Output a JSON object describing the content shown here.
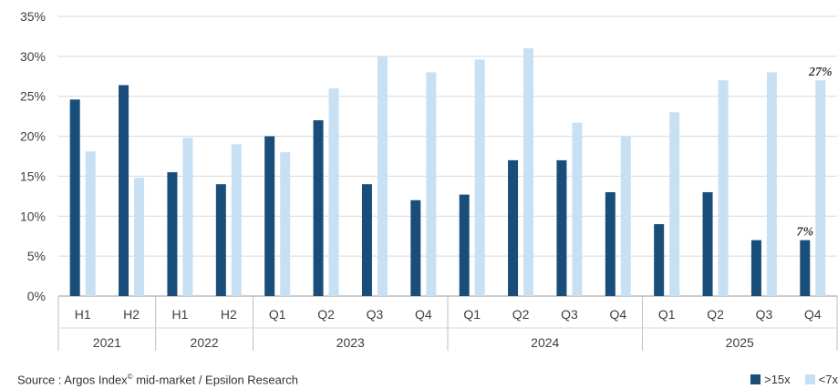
{
  "chart_data": {
    "type": "bar",
    "title": "",
    "xlabel": "",
    "ylabel": "",
    "ylim": [
      0,
      35
    ],
    "yticks": [
      "0%",
      "5%",
      "10%",
      "15%",
      "20%",
      "25%",
      "30%",
      "35%"
    ],
    "grid": true,
    "categories": [
      "H1",
      "H2",
      "H1",
      "H2",
      "Q1",
      "Q2",
      "Q3",
      "Q4",
      "Q1",
      "Q2",
      "Q3",
      "Q4",
      "Q1",
      "Q2",
      "Q3",
      "Q4"
    ],
    "groups": [
      {
        "label": "2021",
        "count": 2
      },
      {
        "label": "2022",
        "count": 2
      },
      {
        "label": "2023",
        "count": 4
      },
      {
        "label": "2024",
        "count": 4
      },
      {
        "label": "2025",
        "count": 4
      }
    ],
    "series": [
      {
        "name": ">15x",
        "color": "#1a4e7a",
        "values": [
          24.6,
          26.4,
          15.5,
          14.0,
          20.0,
          22.0,
          14.0,
          12.0,
          12.7,
          17.0,
          17.0,
          13.0,
          9.0,
          13.0,
          7.0,
          7.0
        ]
      },
      {
        "name": "<7x",
        "color": "#c8e0f4",
        "values": [
          18.1,
          14.8,
          19.8,
          19.0,
          18.0,
          26.0,
          30.0,
          28.0,
          29.6,
          31.0,
          21.7,
          20.0,
          23.0,
          27.0,
          28.0,
          27.0
        ]
      }
    ],
    "annotations": [
      {
        "text": "7%",
        "series": 0,
        "index": 15
      },
      {
        "text": "27%",
        "series": 1,
        "index": 15
      }
    ],
    "legend_position": "bottom-right"
  },
  "footer": {
    "source_prefix": "Source : Argos Index",
    "source_mark": "©",
    "source_suffix": " mid-market / Epsilon Research"
  }
}
